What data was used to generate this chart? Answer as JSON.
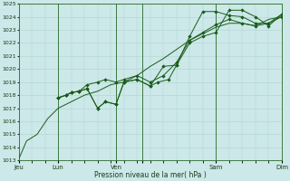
{
  "title": "",
  "xlabel": "Pression niveau de la mer( hPa )",
  "ylim": [
    1013,
    1025
  ],
  "yticks": [
    1013,
    1014,
    1015,
    1016,
    1017,
    1018,
    1019,
    1020,
    1021,
    1022,
    1023,
    1024,
    1025
  ],
  "bg_color": "#cce8e8",
  "grid_color": "#b0d4d4",
  "line_color": "#1a5c1a",
  "tick_label_color": "#1a3a1a",
  "xlabel_color": "#1a3a1a",
  "vline_color": "#2a6a2a",
  "line1_x": [
    0.0,
    0.3,
    0.7,
    1.1,
    1.5,
    2.0,
    2.5,
    3.0,
    3.5,
    4.0,
    4.5,
    5.0,
    5.5,
    6.0,
    6.5,
    7.0,
    7.5,
    8.0,
    8.5,
    9.0,
    9.5,
    10.0
  ],
  "line1_y": [
    1013.1,
    1014.5,
    1015.0,
    1016.2,
    1017.0,
    1017.5,
    1018.0,
    1018.3,
    1018.8,
    1019.0,
    1019.5,
    1020.2,
    1020.8,
    1021.5,
    1022.2,
    1022.7,
    1023.2,
    1023.5,
    1023.5,
    1023.3,
    1023.8,
    1024.0
  ],
  "line2_x": [
    1.5,
    1.8,
    2.0,
    2.3,
    2.6,
    3.0,
    3.3,
    3.7,
    4.0,
    4.5,
    5.0,
    5.3,
    5.7,
    6.0,
    6.5,
    7.0,
    7.5,
    8.0,
    8.5,
    9.0,
    9.5,
    10.0
  ],
  "line2_y": [
    1017.8,
    1018.0,
    1018.2,
    1018.3,
    1018.5,
    1017.0,
    1017.5,
    1017.3,
    1019.0,
    1019.2,
    1018.7,
    1019.0,
    1019.2,
    1020.3,
    1022.0,
    1022.5,
    1022.8,
    1024.5,
    1024.5,
    1024.0,
    1023.3,
    1024.2
  ],
  "line3_x": [
    1.5,
    1.8,
    2.0,
    2.3,
    2.6,
    3.0,
    3.3,
    3.7,
    4.0,
    4.5,
    5.0,
    5.5,
    6.0,
    6.5,
    7.0,
    7.5,
    8.0,
    8.5,
    9.0,
    9.5,
    10.0
  ],
  "line3_y": [
    1017.8,
    1018.0,
    1018.2,
    1018.3,
    1018.5,
    1017.0,
    1017.5,
    1017.3,
    1019.0,
    1019.2,
    1018.7,
    1020.2,
    1020.3,
    1022.5,
    1024.4,
    1024.4,
    1024.1,
    1024.0,
    1023.5,
    1023.5,
    1024.2
  ],
  "line4_x": [
    1.5,
    1.8,
    2.0,
    2.3,
    2.6,
    3.0,
    3.3,
    3.7,
    4.0,
    4.5,
    5.0,
    5.5,
    6.0,
    6.5,
    7.0,
    7.5,
    8.0,
    8.5,
    9.0,
    9.5,
    10.0
  ],
  "line4_y": [
    1017.8,
    1018.0,
    1018.2,
    1018.3,
    1018.8,
    1019.0,
    1019.2,
    1019.0,
    1019.2,
    1019.5,
    1019.0,
    1019.5,
    1020.5,
    1022.2,
    1022.8,
    1023.4,
    1023.8,
    1023.5,
    1023.3,
    1023.5,
    1024.0
  ],
  "vline_positions_x": [
    1.5,
    3.7,
    4.7,
    7.5,
    10.0
  ],
  "xtick_positions": [
    0.0,
    1.5,
    3.7,
    4.7,
    7.5,
    10.0
  ],
  "xtick_labels": [
    "Jeu",
    "Lun",
    "Ven",
    "",
    "Sam",
    "Dim"
  ]
}
